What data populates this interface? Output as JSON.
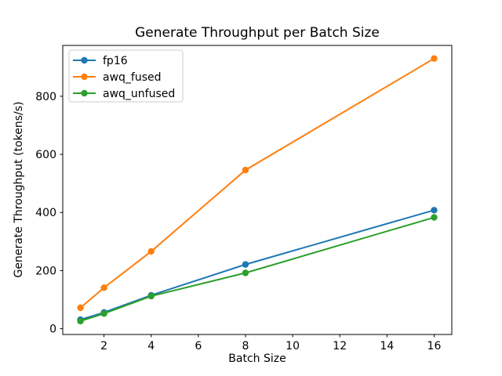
{
  "chart_data": {
    "type": "line",
    "title": "Generate Throughput per Batch Size",
    "xlabel": "Batch Size",
    "ylabel": "Generate Throughput (tokens/s)",
    "x": [
      1,
      2,
      4,
      8,
      16
    ],
    "series": [
      {
        "name": "fp16",
        "color": "#1f77b4",
        "values": [
          31,
          56,
          115,
          221,
          408
        ]
      },
      {
        "name": "awq_fused",
        "color": "#ff7f0e",
        "values": [
          72,
          141,
          266,
          546,
          930
        ]
      },
      {
        "name": "awq_unfused",
        "color": "#2ca02c",
        "values": [
          26,
          52,
          112,
          192,
          383
        ]
      }
    ],
    "xticks": [
      2,
      4,
      6,
      8,
      10,
      12,
      14,
      16
    ],
    "yticks": [
      0,
      200,
      400,
      600,
      800
    ],
    "xlim": [
      0.25,
      16.75
    ],
    "ylim": [
      -20,
      975
    ],
    "grid": false,
    "legend_position": "upper left",
    "marker": "circle",
    "background_color": "#ffffff",
    "axis_color": "#000000"
  }
}
